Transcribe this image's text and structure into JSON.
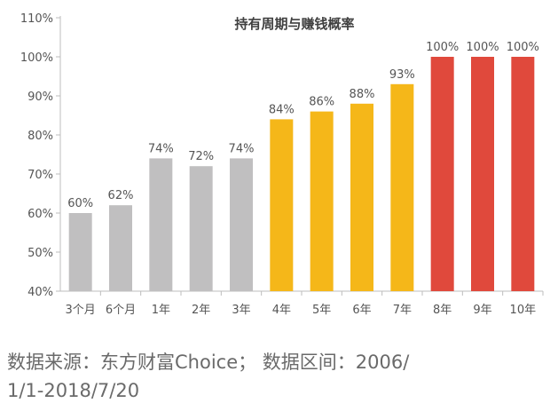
{
  "chart_data": {
    "type": "bar",
    "title": "持有周期与赚钱概率",
    "categories": [
      "3个月",
      "6个月",
      "1年",
      "2年",
      "3年",
      "4年",
      "5年",
      "6年",
      "7年",
      "8年",
      "9年",
      "10年"
    ],
    "values": [
      60,
      62,
      74,
      72,
      74,
      84,
      86,
      88,
      93,
      100,
      100,
      100
    ],
    "data_labels": [
      "60%",
      "62%",
      "74%",
      "72%",
      "74%",
      "84%",
      "86%",
      "88%",
      "93%",
      "100%",
      "100%",
      "100%"
    ],
    "bar_colors": [
      "#c0bfc0",
      "#c0bfc0",
      "#c0bfc0",
      "#c0bfc0",
      "#c0bfc0",
      "#f5b719",
      "#f5b719",
      "#f5b719",
      "#f5b719",
      "#e0493c",
      "#e0493c",
      "#e0493c"
    ],
    "ylim": [
      40,
      110
    ],
    "yticks": [
      40,
      50,
      60,
      70,
      80,
      90,
      100,
      110
    ],
    "ytick_labels": [
      "40%",
      "50%",
      "60%",
      "70%",
      "80%",
      "90%",
      "100%",
      "110%"
    ],
    "grid": false,
    "xlabel": "",
    "ylabel": ""
  },
  "source": {
    "line1": "数据来源：东方财富Choice；  数据区间：2006/",
    "line2": "1/1-2018/7/20"
  }
}
